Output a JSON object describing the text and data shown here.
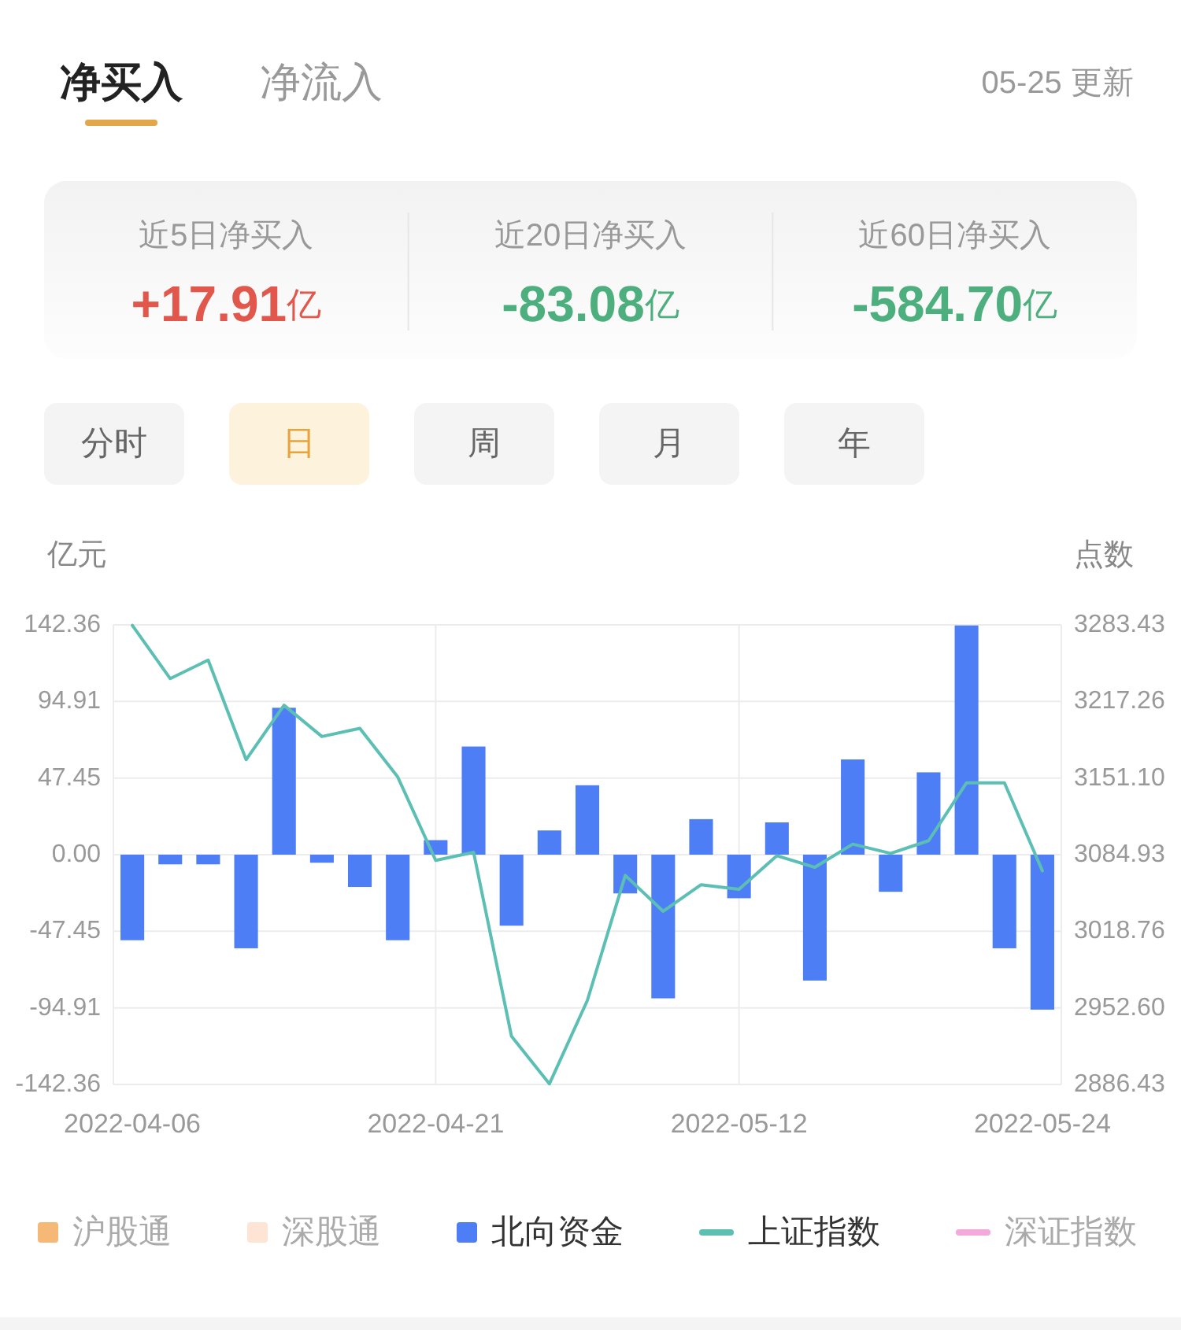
{
  "chart_data": [
    {
      "type": "other",
      "annotations": [
        "净买入",
        "净流入",
        "05-25 更新",
        "近5日净买入",
        "+17.91亿",
        "近20日净买入",
        "-83.08亿",
        "近60日净买入",
        "-584.70亿",
        "分时",
        "日",
        "周",
        "月",
        "年"
      ]
    },
    {
      "type": "bar",
      "categories": [
        "2022-04-06",
        null,
        null,
        null,
        null,
        null,
        null,
        null,
        "2022-04-21",
        null,
        null,
        null,
        null,
        null,
        null,
        null,
        "2022-05-12",
        null,
        null,
        null,
        null,
        null,
        null,
        null,
        "2022-05-24"
      ],
      "ylabel": "亿元",
      "y2label": "点数",
      "ylim": [
        -142.36,
        142.36
      ],
      "yticks": [
        142.36,
        94.91,
        47.45,
        {
          "value": 0,
          "label": "0.00"
        },
        -47.45,
        -94.91,
        -142.36
      ],
      "y2lim": [
        2886.43,
        3283.43
      ],
      "y2ticks": [
        3283.43,
        3217.26,
        {
          "value": 3151.1,
          "label": "3151.10"
        },
        3084.93,
        3018.76,
        {
          "value": 2952.6,
          "label": "2952.60"
        },
        2886.43
      ],
      "grid": true,
      "legend": "bottom",
      "series": [
        {
          "name": "沪股通",
          "type": "bar",
          "color": "#f5b877",
          "values": [
            null,
            null,
            null,
            null,
            null,
            null,
            null,
            null,
            null,
            null,
            null,
            null,
            null,
            null,
            null,
            null,
            null,
            null,
            null,
            null,
            null,
            null,
            null,
            null,
            null
          ]
        },
        {
          "name": "深股通",
          "type": "bar",
          "color": "#fde4d4",
          "values": [
            null,
            null,
            null,
            null,
            null,
            null,
            null,
            null,
            null,
            null,
            null,
            null,
            null,
            null,
            null,
            null,
            null,
            null,
            null,
            null,
            null,
            null,
            null,
            null,
            null
          ]
        },
        {
          "name": "北向资金",
          "type": "bar",
          "color": "#4e7ef6",
          "values": [
            -53,
            -6,
            -6,
            -58,
            91,
            -5,
            -20,
            -53,
            9,
            67,
            -44,
            15,
            43,
            -24,
            -89,
            22,
            -27,
            20,
            -78,
            59,
            -23,
            51,
            142,
            -58,
            -96
          ]
        },
        {
          "name": "上证指数",
          "type": "line",
          "axis": "y2",
          "color": "#5bbfb4",
          "values": [
            3283,
            3237,
            3253,
            3167,
            3214,
            3187,
            3194,
            3152,
            3080,
            3087,
            2928,
            2887,
            2959,
            3067,
            3036,
            3059,
            3055,
            3084,
            3074,
            3094,
            3086,
            3097,
            3147,
            3147,
            3071
          ]
        },
        {
          "name": "深证指数",
          "type": "line",
          "axis": "y2",
          "color": "#f3a9dc",
          "values": [
            null,
            null,
            null,
            null,
            null,
            null,
            null,
            null,
            null,
            null,
            null,
            null,
            null,
            null,
            null,
            null,
            null,
            null,
            null,
            null,
            null,
            null,
            null,
            null,
            null
          ]
        }
      ]
    }
  ]
}
